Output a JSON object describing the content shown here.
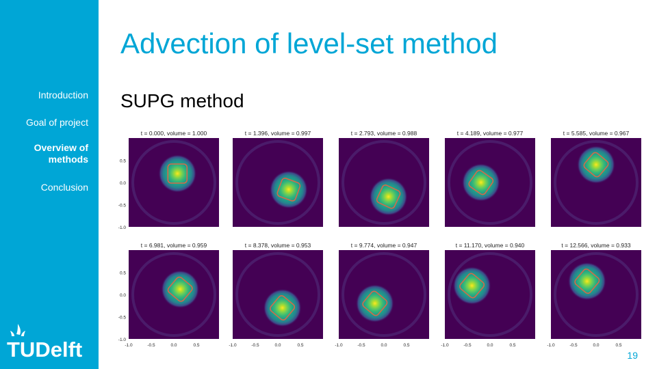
{
  "slide": {
    "title": "Advection of level-set method",
    "subtitle": "SUPG method",
    "page_number": "19"
  },
  "sidebar": {
    "items": [
      {
        "label": "Introduction"
      },
      {
        "label": "Goal of project"
      },
      {
        "label": "Overview of methods",
        "lines": [
          "Overview of",
          "methods"
        ]
      },
      {
        "label": "Conclusion"
      }
    ],
    "logo_text": "TUDelft",
    "logo_color": "#ffffff",
    "background": "#00A6D6"
  },
  "figure": {
    "frame_titles": [
      "t = 0.000, volume = 1.000",
      "t = 1.396, volume = 0.997",
      "t = 2.793, volume = 0.988",
      "t = 4.189, volume = 0.977",
      "t = 5.585, volume = 0.967",
      "t = 6.981, volume = 0.959",
      "t = 8.378, volume = 0.953",
      "t = 9.774, volume = 0.947",
      "t = 11.170, volume = 0.940",
      "t = 12.566, volume = 0.933"
    ],
    "y_ticks": [
      "0.5",
      "0.0",
      "-0.5",
      "-1.0"
    ],
    "x_ticks": [
      "-1.0",
      "-0.5",
      "0.0",
      "0.5"
    ],
    "colormap": "viridis",
    "background_color": "#440154",
    "contour_color": "#d46a4a"
  }
}
